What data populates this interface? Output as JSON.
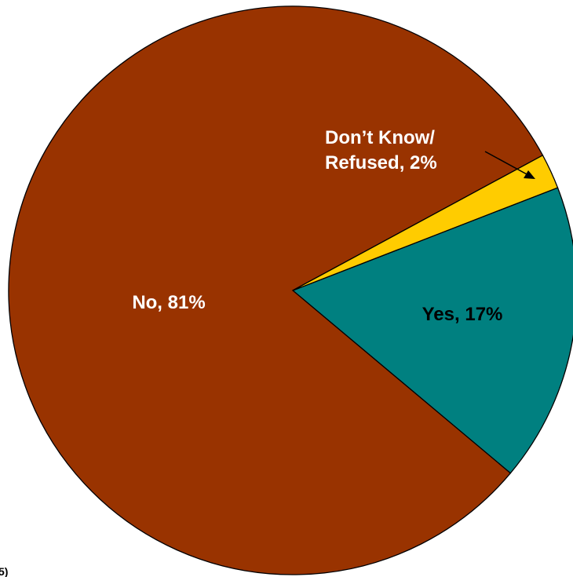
{
  "chart_data": {
    "type": "pie",
    "title": "",
    "slices": [
      {
        "label": "Yes",
        "value": 17,
        "display": "Yes, 17%",
        "color": "#008080"
      },
      {
        "label": "Don't Know/ Refused",
        "value": 2,
        "display_lines": [
          "Don’t Know/",
          "Refused, 2%"
        ],
        "color": "#FFCC00"
      },
      {
        "label": "No",
        "value": 81,
        "display": "No, 81%",
        "color": "#993300"
      }
    ],
    "legend": "none",
    "label_colors": {
      "Yes": "#000000",
      "Don't Know/ Refused": "#ffffff",
      "No": "#ffffff"
    }
  },
  "clipped_text": "5)"
}
